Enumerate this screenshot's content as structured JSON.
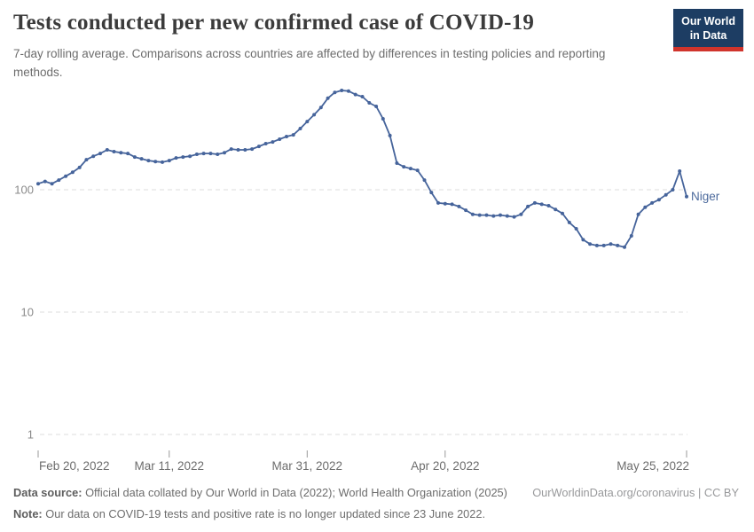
{
  "header": {
    "title": "Tests conducted per new confirmed case of COVID-19",
    "subtitle": "7-day rolling average. Comparisons across countries are affected by differences in testing policies and reporting methods.",
    "logo": {
      "line1": "Our World",
      "line2": "in Data"
    }
  },
  "colors": {
    "line": "#46649b",
    "series_label": "#4c6a9c",
    "grid": "#dddddd",
    "y_axis_label": "#8a8a8a",
    "x_axis_label": "#6d6d6d",
    "tick_mark": "#999999",
    "logo_bg": "#1d3d63",
    "logo_red": "#d0342c"
  },
  "chart_data": {
    "type": "line",
    "title": "Tests conducted per new confirmed case of COVID-19",
    "y_scale": "log",
    "grid": "dashed-horizontal",
    "legend_position": "end-of-line-label",
    "x_axis": {
      "start_date": "Feb 20, 2022",
      "end_date": "May 25, 2022",
      "frequency": "daily",
      "tick_labels": [
        "Feb 20, 2022",
        "Mar 11, 2022",
        "Mar 31, 2022",
        "Apr 20, 2022",
        "May 25, 2022"
      ],
      "tick_day_index": [
        0,
        19,
        39,
        59,
        94
      ]
    },
    "y_axis": {
      "tick_labels": [
        "100",
        "10",
        "1"
      ],
      "tick_values": [
        100,
        10,
        1
      ],
      "range": [
        1,
        730
      ]
    },
    "series": [
      {
        "name": "Niger",
        "values": [
          112,
          117,
          112,
          120,
          129,
          139,
          152,
          176,
          188,
          198,
          212,
          205,
          201,
          198,
          185,
          179,
          173,
          170,
          168,
          173,
          182,
          185,
          188,
          195,
          198,
          198,
          195,
          201,
          215,
          212,
          212,
          215,
          226,
          238,
          246,
          259,
          272,
          281,
          316,
          361,
          410,
          470,
          560,
          625,
          648,
          640,
          600,
          577,
          513,
          480,
          380,
          277,
          165,
          154,
          149,
          144,
          120,
          95,
          78,
          77,
          76,
          73,
          68,
          63,
          62,
          62,
          61,
          62,
          61,
          60,
          63,
          73,
          78,
          76,
          74,
          69,
          64,
          54,
          48,
          39,
          36,
          35,
          35,
          36,
          35,
          34,
          42,
          63,
          72,
          78,
          83,
          91,
          100,
          142,
          88
        ]
      }
    ]
  },
  "footer": {
    "data_source_label": "Data source:",
    "data_source_text": " Official data collated by Our World in Data (2022); World Health Organization (2025)",
    "credit": "OurWorldinData.org/coronavirus | CC BY",
    "note_label": "Note:",
    "note_text": " Our data on COVID-19 tests and positive rate is no longer updated since 23 June 2022."
  }
}
